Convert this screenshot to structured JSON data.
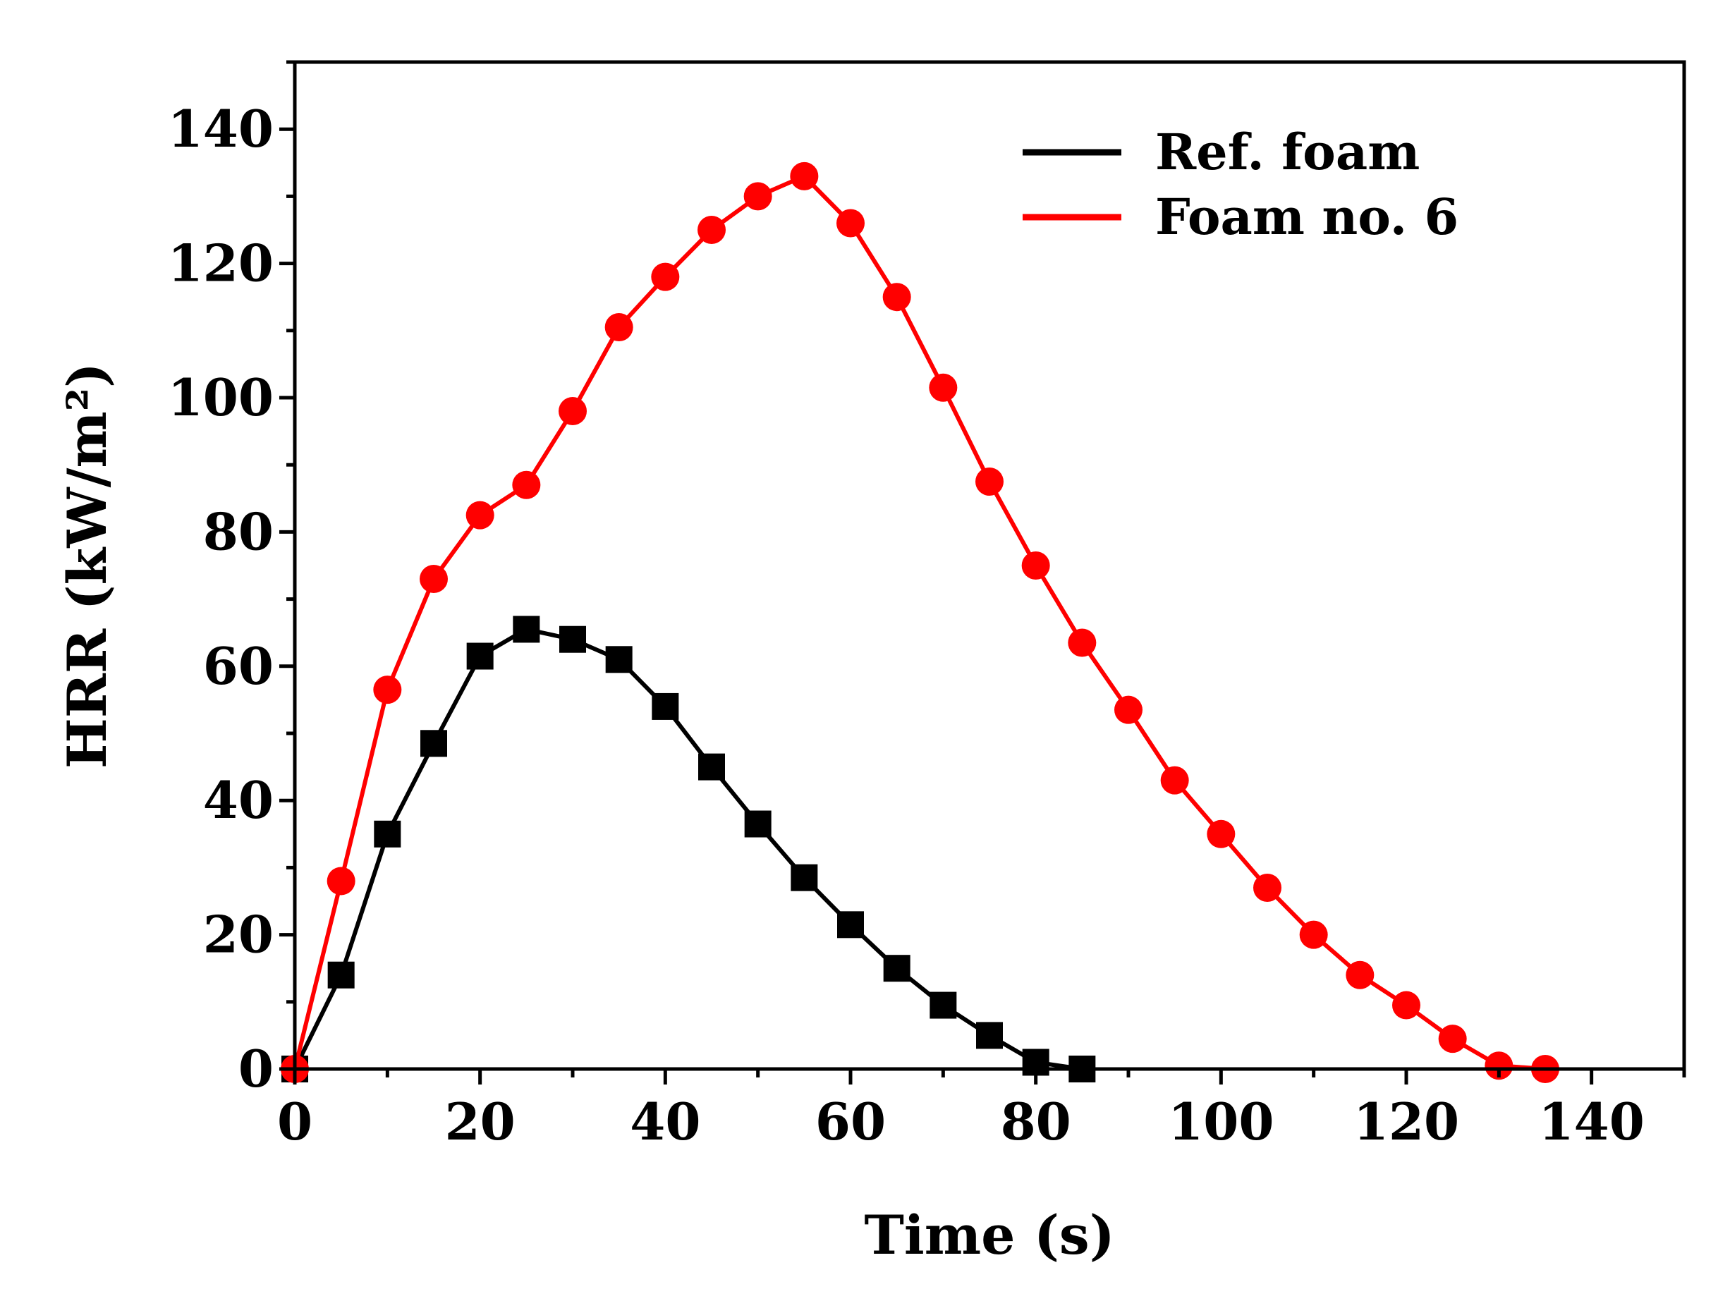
{
  "chart_data": {
    "type": "line",
    "title": "",
    "xlabel": "Time (s)",
    "ylabel": "HRR (kW/m²)",
    "xlim": [
      0,
      150
    ],
    "ylim": [
      0,
      150
    ],
    "xticks": [
      0,
      20,
      40,
      60,
      80,
      100,
      120,
      140
    ],
    "yticks": [
      0,
      20,
      40,
      60,
      80,
      100,
      120,
      140
    ],
    "legend_position": "top-right",
    "grid": false,
    "series": [
      {
        "name": "Ref. foam",
        "color": "#000000",
        "marker": "square",
        "x": [
          0,
          5,
          10,
          15,
          20,
          25,
          30,
          35,
          40,
          45,
          50,
          55,
          60,
          65,
          70,
          75,
          80,
          85
        ],
        "y": [
          0,
          14,
          35,
          48.5,
          61.5,
          65.5,
          64,
          61,
          54,
          45,
          36.5,
          28.5,
          21.5,
          15,
          9.5,
          5,
          1,
          0
        ]
      },
      {
        "name": "Foam no. 6",
        "color": "#ff0000",
        "marker": "circle",
        "x": [
          0,
          5,
          10,
          15,
          20,
          25,
          30,
          35,
          40,
          45,
          50,
          55,
          60,
          65,
          70,
          75,
          80,
          85,
          90,
          95,
          100,
          105,
          110,
          115,
          120,
          125,
          130,
          135
        ],
        "y": [
          0,
          28,
          56.5,
          73,
          82.5,
          87,
          98,
          110.5,
          118,
          125,
          130,
          133,
          126,
          115,
          101.5,
          87.5,
          75,
          63.5,
          53.5,
          43,
          35,
          27,
          20,
          14,
          9.5,
          4.5,
          0.5,
          0
        ]
      }
    ]
  }
}
